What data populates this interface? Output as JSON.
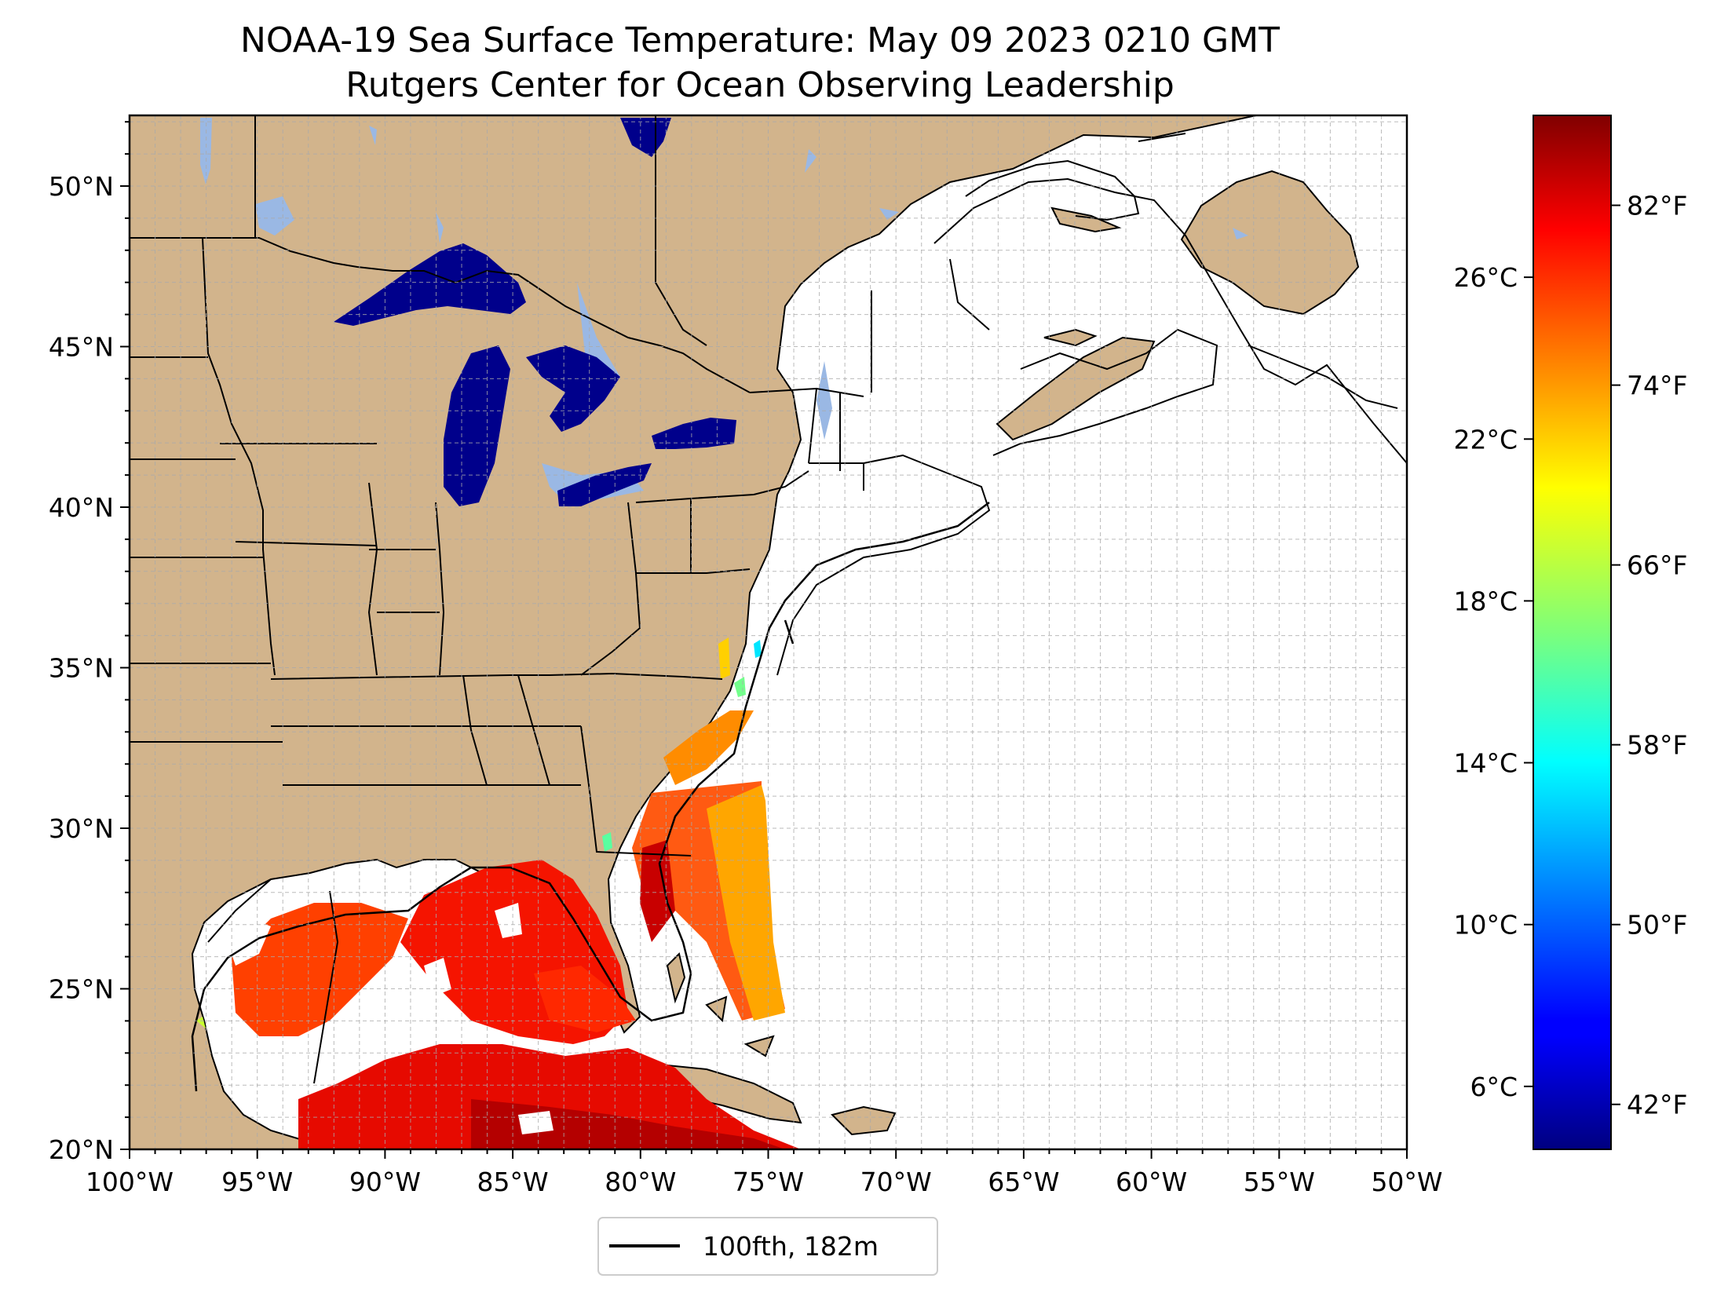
{
  "title": {
    "line1": "NOAA-19 Sea Surface Temperature: May 09 2023 0210 GMT",
    "line2": "Rutgers Center for Ocean Observing Leadership"
  },
  "map": {
    "projection": "PlateCarree",
    "lon_range": [
      -100,
      -50
    ],
    "lat_range": [
      20,
      52.2
    ],
    "x_ticks": [
      {
        "lon": -100,
        "label": "100°W"
      },
      {
        "lon": -95,
        "label": "95°W"
      },
      {
        "lon": -90,
        "label": "90°W"
      },
      {
        "lon": -85,
        "label": "85°W"
      },
      {
        "lon": -80,
        "label": "80°W"
      },
      {
        "lon": -75,
        "label": "75°W"
      },
      {
        "lon": -70,
        "label": "70°W"
      },
      {
        "lon": -65,
        "label": "65°W"
      },
      {
        "lon": -60,
        "label": "60°W"
      },
      {
        "lon": -55,
        "label": "55°W"
      },
      {
        "lon": -50,
        "label": "50°W"
      }
    ],
    "y_ticks": [
      {
        "lat": 20,
        "label": "20°N"
      },
      {
        "lat": 25,
        "label": "25°N"
      },
      {
        "lat": 30,
        "label": "30°N"
      },
      {
        "lat": 35,
        "label": "35°N"
      },
      {
        "lat": 40,
        "label": "40°N"
      },
      {
        "lat": 45,
        "label": "45°N"
      },
      {
        "lat": 50,
        "label": "50°N"
      }
    ],
    "gridlines": true,
    "colors": {
      "land": "#d2b48c",
      "inland_water": "#9ab8e4",
      "lake_sst": "#00008b",
      "ocean_no_data": "#ffffff",
      "grid": "#aaaaaa",
      "coastline": "#000000"
    }
  },
  "colorbar": {
    "colormap": "jet",
    "range_f": [
      40,
      86
    ],
    "celsius_ticks": [
      {
        "value": 26,
        "label": "26°C"
      },
      {
        "value": 22,
        "label": "22°C"
      },
      {
        "value": 18,
        "label": "18°C"
      },
      {
        "value": 14,
        "label": "14°C"
      },
      {
        "value": 10,
        "label": "10°C"
      },
      {
        "value": 6,
        "label": "6°C"
      }
    ],
    "fahrenheit_ticks": [
      {
        "value": 82,
        "label": "82°F"
      },
      {
        "value": 74,
        "label": "74°F"
      },
      {
        "value": 66,
        "label": "66°F"
      },
      {
        "value": 58,
        "label": "58°F"
      },
      {
        "value": 50,
        "label": "50°F"
      },
      {
        "value": 42,
        "label": "42°F"
      }
    ]
  },
  "legend": {
    "items": [
      {
        "label": "100fth, 182m",
        "color": "#000000"
      }
    ],
    "placement": "bottom-center"
  }
}
